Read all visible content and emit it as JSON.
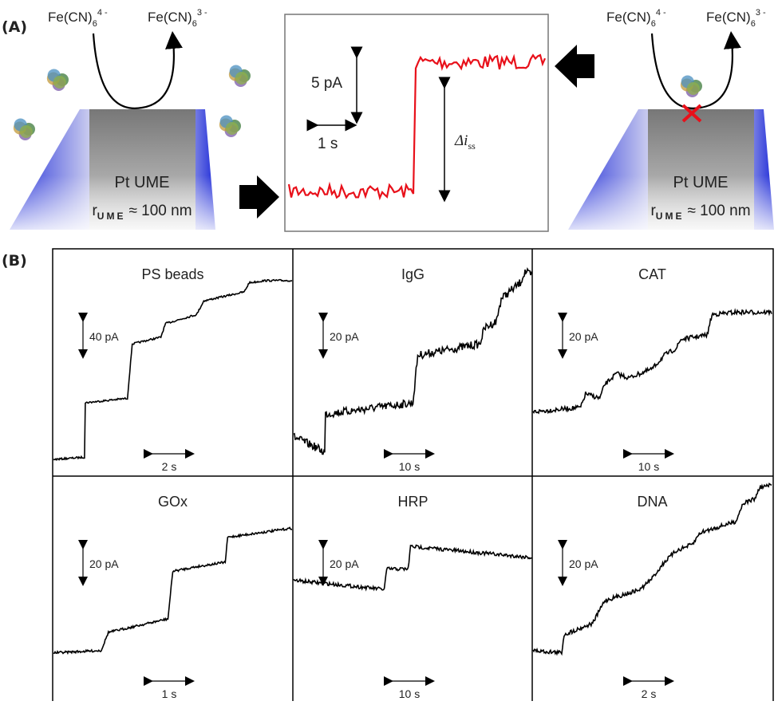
{
  "panel_a": {
    "label": "(A)",
    "left_electrode": {
      "reactant": {
        "base": "Fe(CN)",
        "sub": "6",
        "sup": "4 -"
      },
      "product": {
        "base": "Fe(CN)",
        "sub": "6",
        "sup": "3 -"
      },
      "name": "Pt UME",
      "radius": {
        "symbol": "r",
        "sub": "UME",
        "text": "≈ 100 nm"
      }
    },
    "right_electrode": {
      "reactant": {
        "base": "Fe(CN)",
        "sub": "6",
        "sup": "4 -"
      },
      "product": {
        "base": "Fe(CN)",
        "sub": "6",
        "sup": "3 -"
      },
      "name": "Pt UME",
      "radius": {
        "symbol": "r",
        "sub": "UME",
        "text": "≈ 100 nm"
      }
    },
    "inset": {
      "current_scale": "5 pA",
      "time_scale": "1 s",
      "step": {
        "symbol": "Δi",
        "sub": "ss"
      }
    }
  },
  "panel_b": {
    "label": "(B)",
    "traces": [
      {
        "title": "PS beads",
        "current_scale": "40 pA",
        "time_scale": "2 s"
      },
      {
        "title": "IgG",
        "current_scale": "20 pA",
        "time_scale": "10 s"
      },
      {
        "title": "CAT",
        "current_scale": "20 pA",
        "time_scale": "10 s"
      },
      {
        "title": "GOx",
        "current_scale": "20 pA",
        "time_scale": "1 s"
      },
      {
        "title": "HRP",
        "current_scale": "20 pA",
        "time_scale": "10 s"
      },
      {
        "title": "DNA",
        "current_scale": "20 pA",
        "time_scale": "2 s"
      }
    ]
  }
}
